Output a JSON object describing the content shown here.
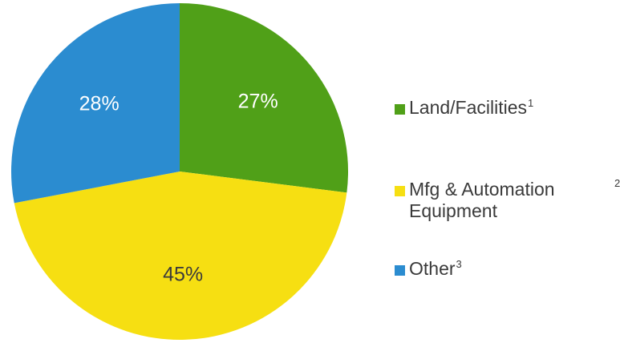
{
  "chart_data": {
    "type": "pie",
    "title": "",
    "slices": [
      {
        "label": "Land/Facilities",
        "footnote": "1",
        "value": 27,
        "value_label": "27%",
        "color": "#50a018",
        "label_color": "#ffffff"
      },
      {
        "label": "Mfg & Automation Equipment",
        "label_lines": [
          "Mfg & Automation",
          "Equipment"
        ],
        "footnote": "2",
        "value": 45,
        "value_label": "45%",
        "color": "#f6df12",
        "label_color": "#3b3b3b"
      },
      {
        "label": "Other",
        "footnote": "3",
        "value": 28,
        "value_label": "28%",
        "color": "#2b8cd0",
        "label_color": "#ffffff"
      }
    ],
    "start_angle_deg": 0,
    "direction": "clockwise",
    "legend_position": "right"
  }
}
